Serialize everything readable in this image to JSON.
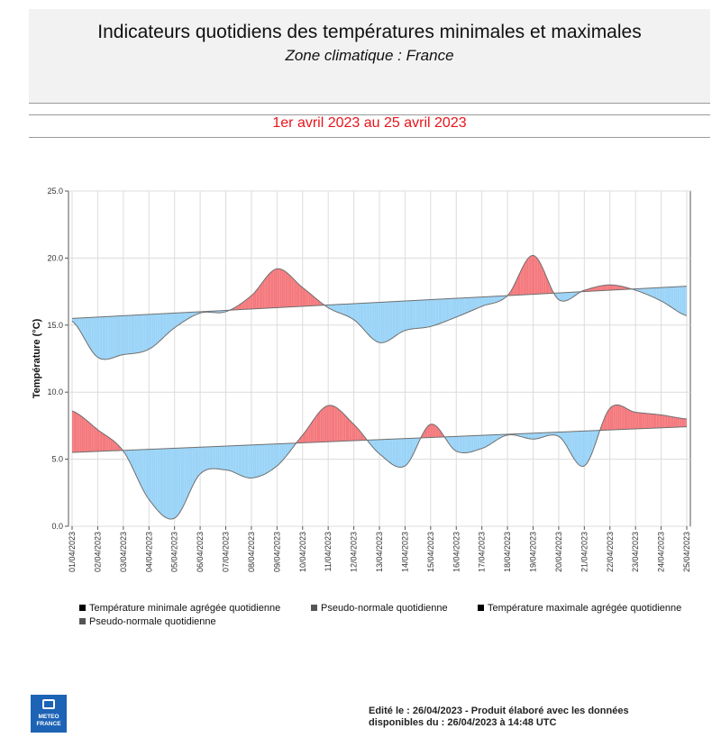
{
  "header": {
    "title": "Indicateurs quotidiens des températures minimales et maximales",
    "subtitle": "Zone climatique : France",
    "period": "1er avril 2023 au 25 avril 2023"
  },
  "chart_data": {
    "type": "area",
    "ylabel": "Température (°C)",
    "xlabel": "",
    "ylim": [
      0,
      25
    ],
    "yticks": [
      "0.0",
      "5.0",
      "10.0",
      "15.0",
      "20.0",
      "25.0"
    ],
    "grid": true,
    "categories": [
      "01/04/2023",
      "02/04/2023",
      "03/04/2023",
      "04/04/2023",
      "05/04/2023",
      "06/04/2023",
      "07/04/2023",
      "08/04/2023",
      "09/04/2023",
      "10/04/2023",
      "11/04/2023",
      "12/04/2023",
      "13/04/2023",
      "14/04/2023",
      "15/04/2023",
      "16/04/2023",
      "17/04/2023",
      "18/04/2023",
      "19/04/2023",
      "20/04/2023",
      "21/04/2023",
      "22/04/2023",
      "23/04/2023",
      "24/04/2023",
      "25/04/2023"
    ],
    "series": [
      {
        "name": "Température minimale agrégée quotidienne",
        "values": [
          8.6,
          7.2,
          5.6,
          2.0,
          0.6,
          3.9,
          4.2,
          3.6,
          4.5,
          6.8,
          9.0,
          7.6,
          5.4,
          4.5,
          7.6,
          5.6,
          5.8,
          6.8,
          6.5,
          6.7,
          4.5,
          8.8,
          8.5,
          8.3,
          8.0
        ]
      },
      {
        "name": "Pseudo-normale quotidienne",
        "values": [
          5.5,
          5.58,
          5.66,
          5.74,
          5.82,
          5.9,
          5.98,
          6.06,
          6.14,
          6.22,
          6.3,
          6.38,
          6.46,
          6.54,
          6.62,
          6.7,
          6.78,
          6.86,
          6.94,
          7.02,
          7.1,
          7.18,
          7.26,
          7.34,
          7.42
        ]
      },
      {
        "name": "Température maximale agrégée quotidienne",
        "values": [
          15.3,
          12.6,
          12.8,
          13.2,
          14.8,
          15.9,
          16.0,
          17.2,
          19.2,
          17.8,
          16.3,
          15.4,
          13.7,
          14.6,
          14.9,
          15.6,
          16.4,
          17.2,
          20.2,
          16.9,
          17.6,
          18.0,
          17.6,
          16.8,
          15.7
        ]
      },
      {
        "name": "Pseudo-normale quotidienne",
        "values": [
          15.5,
          15.6,
          15.7,
          15.8,
          15.9,
          16.0,
          16.1,
          16.2,
          16.3,
          16.4,
          16.5,
          16.6,
          16.7,
          16.8,
          16.9,
          17.0,
          17.1,
          17.2,
          17.3,
          17.4,
          17.5,
          17.6,
          17.7,
          17.8,
          17.9
        ]
      }
    ],
    "colors": {
      "above": "#f4787c",
      "below": "#99d3f7",
      "line": "#6f6f6f"
    }
  },
  "legend": [
    {
      "label": "Température minimale agrégée quotidienne",
      "color": "#000000"
    },
    {
      "label": "Pseudo-normale quotidienne",
      "color": "#555555"
    },
    {
      "label": "Température maximale agrégée quotidienne",
      "color": "#000000"
    },
    {
      "label": "Pseudo-normale quotidienne",
      "color": "#555555"
    }
  ],
  "logo": {
    "line1": "METEO",
    "line2": "FRANCE"
  },
  "footer": {
    "line1": "Edité le : 26/04/2023 - Produit élaboré avec les données",
    "line2": "disponibles du : 26/04/2023 à 14:48 UTC"
  }
}
